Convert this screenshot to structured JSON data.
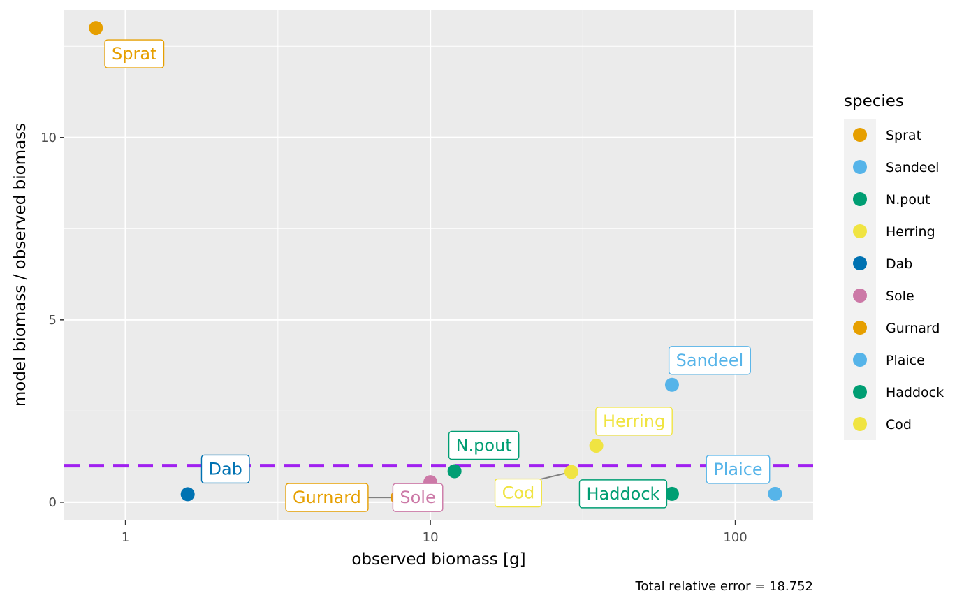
{
  "chart_data": {
    "type": "scatter",
    "xlabel": "observed biomass [g]",
    "ylabel": "model biomass / observed biomass",
    "caption": "Total relative error = 18.752",
    "x_scale": "log10",
    "xlim": [
      0.63,
      180
    ],
    "ylim": [
      -0.5,
      13.5
    ],
    "x_ticks": [
      1,
      10,
      100
    ],
    "y_ticks": [
      0,
      5,
      10
    ],
    "x_tick_labels": [
      "1",
      "10",
      "100"
    ],
    "y_tick_labels": [
      "0",
      "5",
      "10"
    ],
    "grid": true,
    "reference_line": {
      "y": 1,
      "color": "#A020F0",
      "style": "dashed"
    },
    "legend": {
      "title": "species",
      "position": "right"
    },
    "series": [
      {
        "name": "Sprat",
        "color": "#E69F00",
        "x": 0.8,
        "y": 13.0,
        "label_dx": 55,
        "label_dy": 37
      },
      {
        "name": "Sandeel",
        "color": "#56B4E9",
        "x": 62,
        "y": 3.22,
        "label_dx": 54,
        "label_dy": -35
      },
      {
        "name": "N.pout",
        "color": "#009E73",
        "x": 12,
        "y": 0.85,
        "label_dx": 42,
        "label_dy": -37
      },
      {
        "name": "Herring",
        "color": "#F0E442",
        "x": 35,
        "y": 1.55,
        "label_dx": 54,
        "label_dy": -35
      },
      {
        "name": "Dab",
        "color": "#0072B2",
        "x": 1.6,
        "y": 0.22,
        "label_dx": 54,
        "label_dy": -36
      },
      {
        "name": "Sole",
        "color": "#CC79A7",
        "x": 10,
        "y": 0.55,
        "label_dx": -18,
        "label_dy": 22
      },
      {
        "name": "Gurnard",
        "color": "#E69F00",
        "x": 7.8,
        "y": 0.13,
        "label_dx": -101,
        "label_dy": 0,
        "connector": true
      },
      {
        "name": "Plaice",
        "color": "#56B4E9",
        "x": 135,
        "y": 0.23,
        "label_dx": -53,
        "label_dy": -35
      },
      {
        "name": "Haddock",
        "color": "#009E73",
        "x": 62,
        "y": 0.23,
        "label_dx": -70,
        "label_dy": 0
      },
      {
        "name": "Cod",
        "color": "#F0E442",
        "x": 29,
        "y": 0.83,
        "label_dx": -76,
        "label_dy": 30,
        "connector": true
      }
    ]
  }
}
